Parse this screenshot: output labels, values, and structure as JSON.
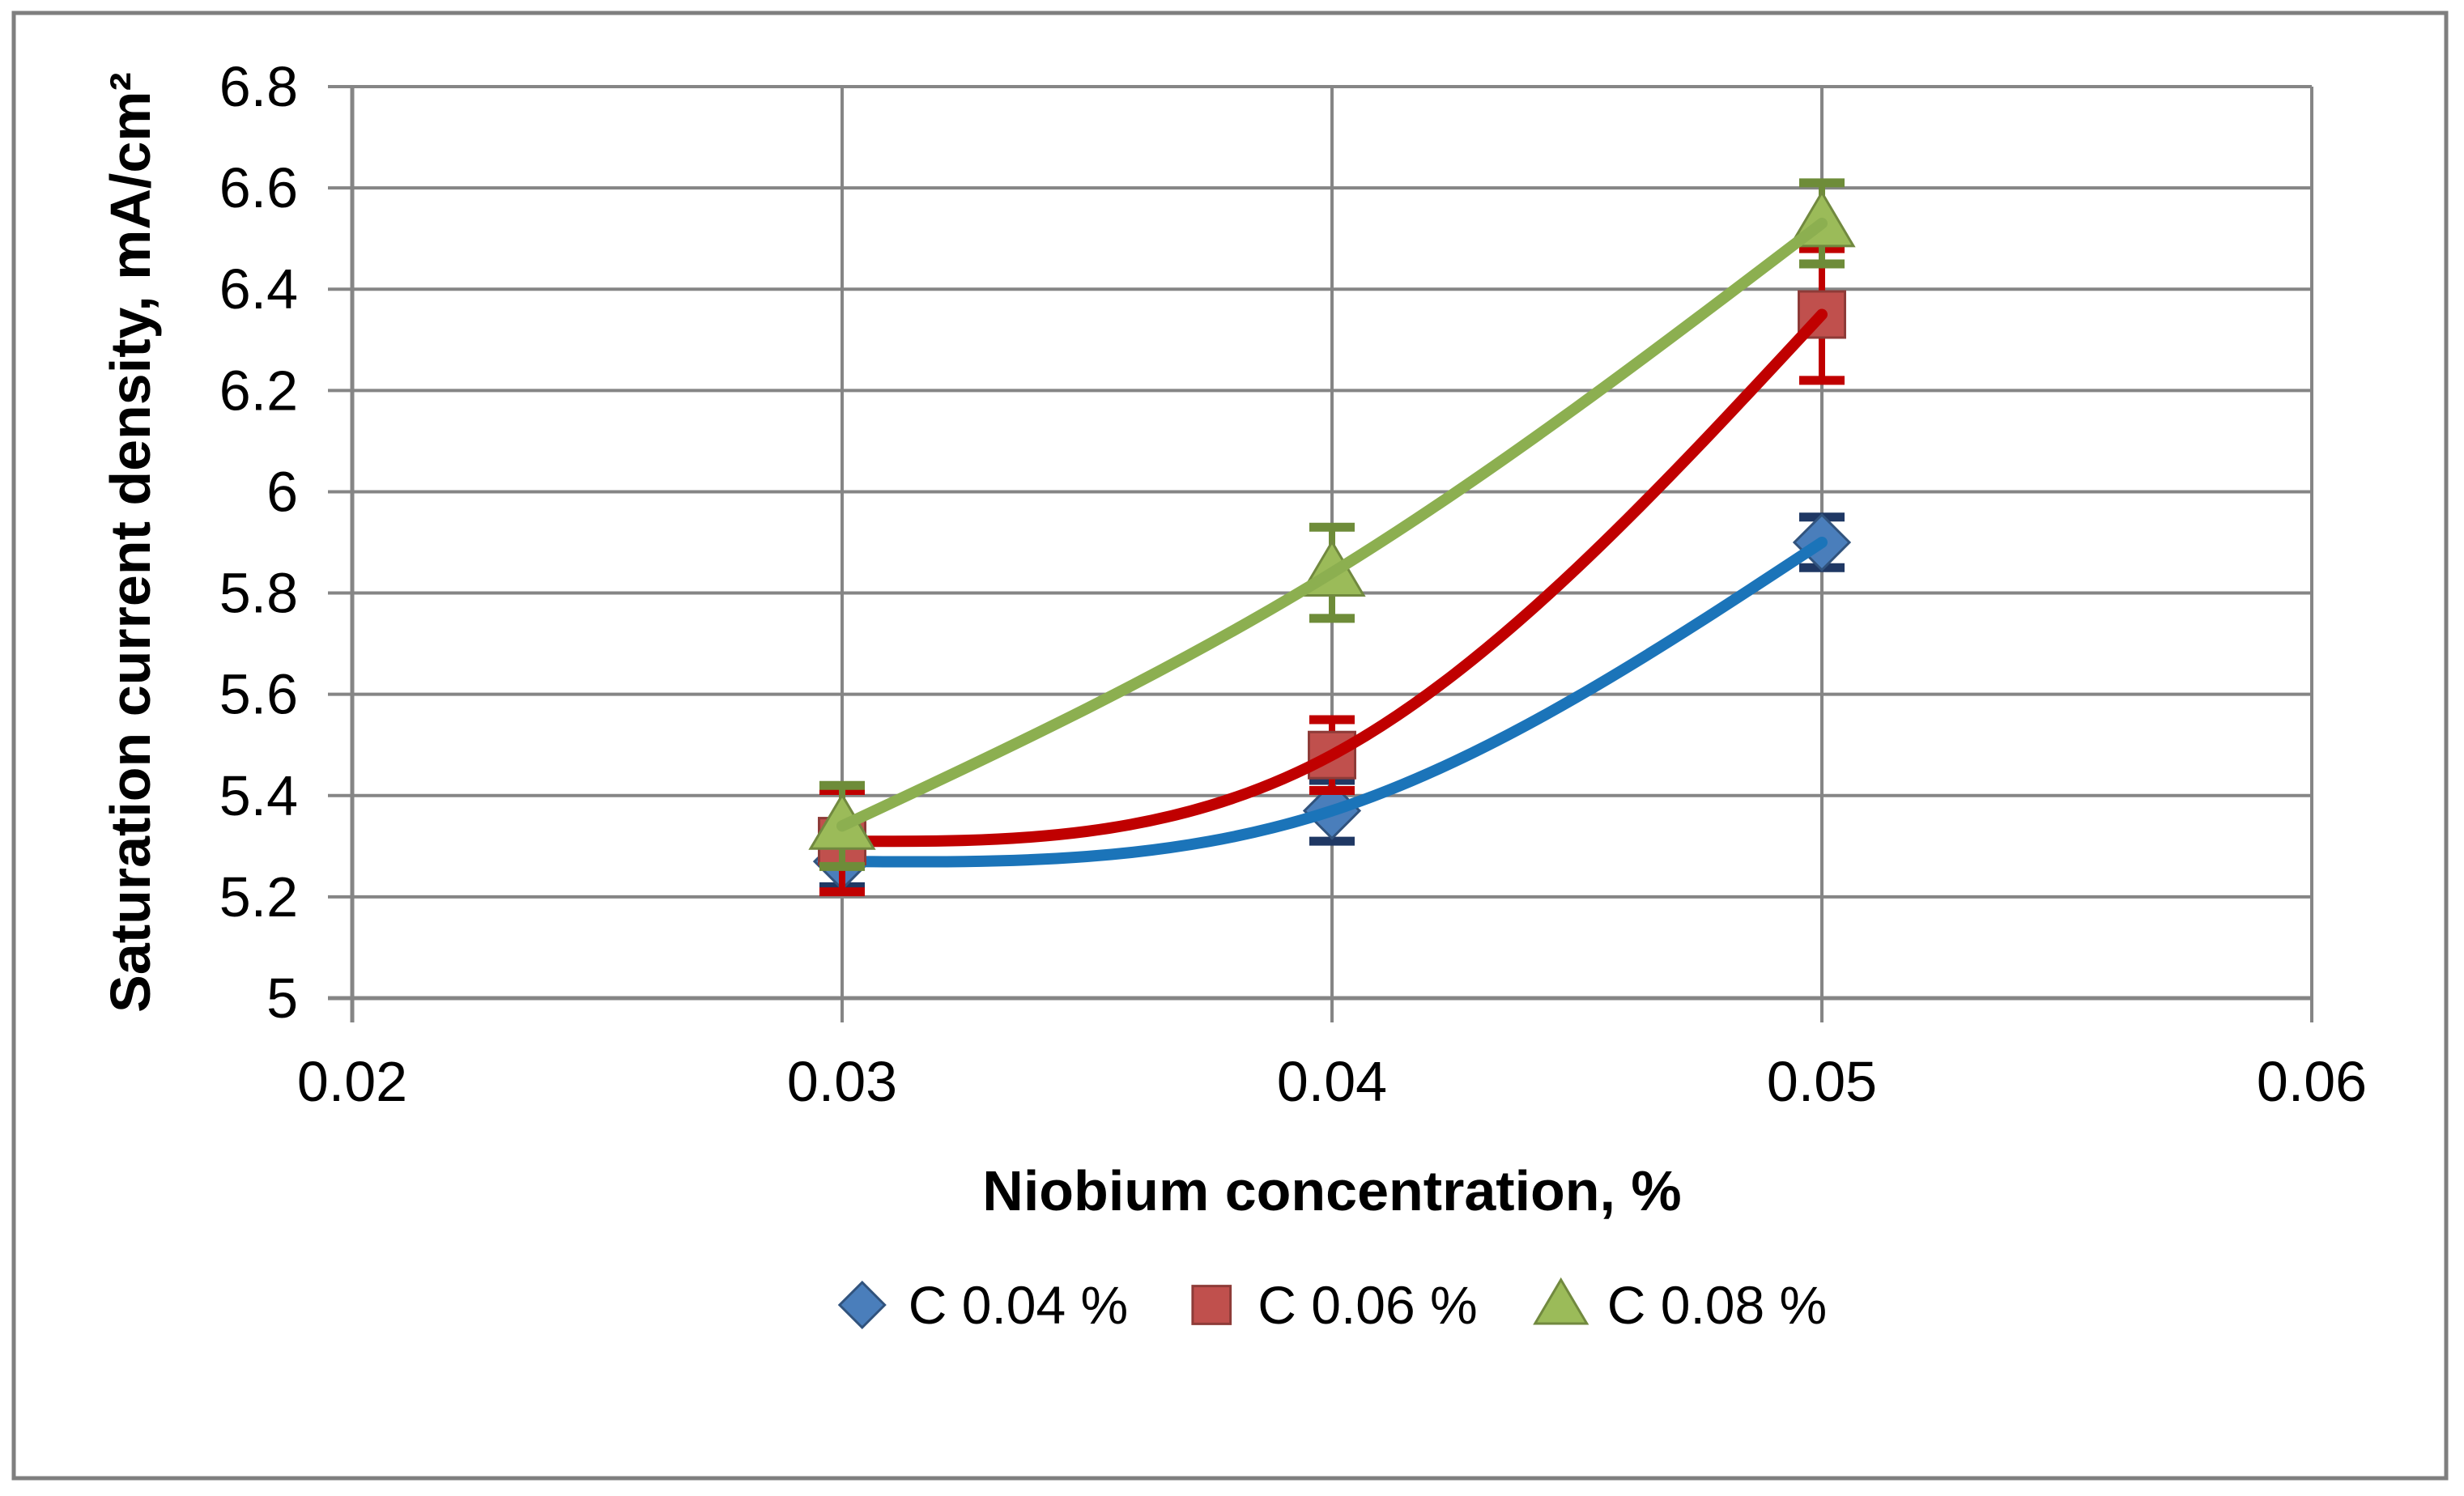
{
  "chart_data": {
    "type": "line",
    "title": "",
    "xlabel": "Niobium concentration, %",
    "ylabel": "Saturation current density, mA/cm²",
    "xlim": [
      0.02,
      0.06
    ],
    "ylim": [
      5.0,
      6.8
    ],
    "grid": true,
    "legend_position": "bottom",
    "x_ticks": [
      0.02,
      0.03,
      0.04,
      0.05,
      0.06
    ],
    "x_tick_labels": [
      "0.02",
      "0.03",
      "0.04",
      "0.05",
      "0.06"
    ],
    "y_ticks": [
      5,
      5.2,
      5.4,
      5.6,
      5.8,
      6,
      6.2,
      6.4,
      6.6,
      6.8
    ],
    "y_tick_labels": [
      "5",
      "5.2",
      "5.4",
      "5.6",
      "5.8",
      "6",
      "6.2",
      "6.4",
      "6.6",
      "6.8"
    ],
    "x": [
      0.03,
      0.04,
      0.05
    ],
    "series": [
      {
        "name": "C 0.04 %",
        "marker": "diamond",
        "values": [
          5.27,
          5.37,
          5.9
        ],
        "errors": [
          0.05,
          0.06,
          0.05
        ],
        "line_color": "#1B74B9",
        "marker_color": "#4A7EBB",
        "marker_stroke": "#31537D",
        "error_color": "#1F3864"
      },
      {
        "name": "C 0.06 %",
        "marker": "square",
        "values": [
          5.31,
          5.48,
          6.35
        ],
        "errors": [
          0.1,
          0.07,
          0.13
        ],
        "line_color": "#C00000",
        "marker_color": "#C0504D",
        "marker_stroke": "#8E3B38",
        "error_color": "#C00000"
      },
      {
        "name": "C 0.08 %",
        "marker": "triangle",
        "values": [
          5.34,
          5.84,
          6.53
        ],
        "errors": [
          0.08,
          0.09,
          0.08
        ],
        "line_color": "#8CAF50",
        "marker_color": "#9BBB59",
        "marker_stroke": "#71893F",
        "error_color": "#6E8C39"
      }
    ],
    "colors": {
      "background": "#FFFFFF",
      "outer_border": "#7F7F7F",
      "grid": "#858585",
      "axis": "#858585",
      "text": "#000000"
    }
  }
}
